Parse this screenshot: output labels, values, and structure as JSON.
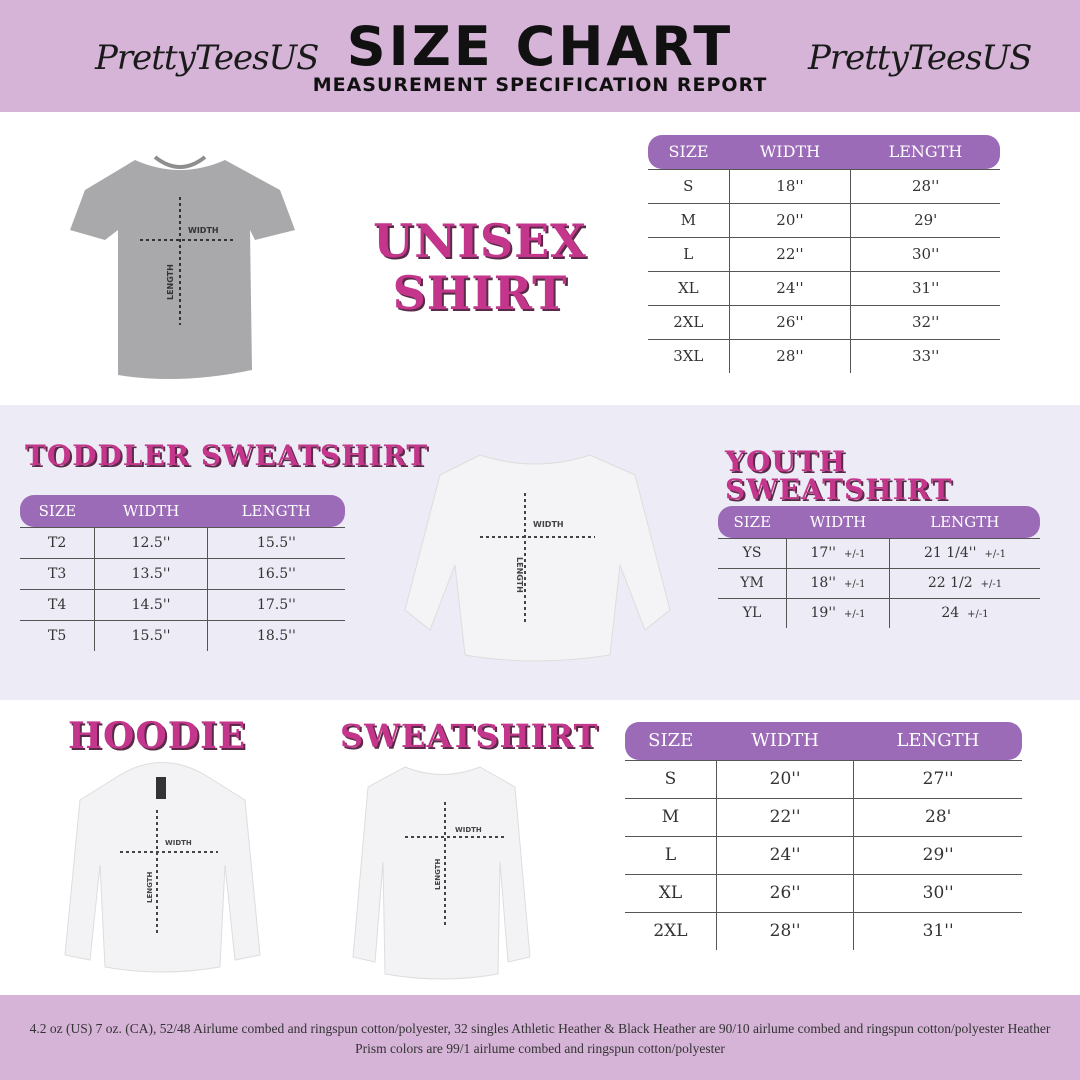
{
  "header": {
    "logo_left": "PrettyTeesUS",
    "logo_right": "PrettyTeesUS",
    "title": "SIZE CHART",
    "subtitle": "MEASUREMENT SPECIFICATION REPORT"
  },
  "measure_labels": {
    "width": "WIDTH",
    "length": "LENGTH"
  },
  "colors": {
    "header_bg": "#d5b4d7",
    "table_header": "#9b6bb7",
    "title_pink": "#c4368c",
    "section_bg": "#edebf6"
  },
  "unisex": {
    "title_line1": "UNISEX",
    "title_line2": "SHIRT",
    "columns": [
      "SIZE",
      "WIDTH",
      "LENGTH"
    ],
    "rows": [
      [
        "S",
        "18''",
        "28''"
      ],
      [
        "M",
        "20''",
        "29'"
      ],
      [
        "L",
        "22''",
        "30''"
      ],
      [
        "XL",
        "24''",
        "31''"
      ],
      [
        "2XL",
        "26''",
        "32''"
      ],
      [
        "3XL",
        "28''",
        "33''"
      ]
    ]
  },
  "toddler": {
    "title": "TODDLER SWEATSHIRT",
    "columns": [
      "SIZE",
      "WIDTH",
      "LENGTH"
    ],
    "rows": [
      [
        "T2",
        "12.5''",
        "15.5''"
      ],
      [
        "T3",
        "13.5''",
        "16.5''"
      ],
      [
        "T4",
        "14.5''",
        "17.5''"
      ],
      [
        "T5",
        "15.5''",
        "18.5''"
      ]
    ]
  },
  "youth": {
    "title": "YOUTH SWEATSHIRT",
    "columns": [
      "SIZE",
      "WIDTH",
      "LENGTH"
    ],
    "tolerance": "+/-1",
    "rows": [
      [
        "YS",
        "17''",
        "21 1/4''"
      ],
      [
        "YM",
        "18''",
        "22 1/2"
      ],
      [
        "YL",
        "19''",
        "24"
      ]
    ]
  },
  "hoodie": {
    "title": "HOODIE"
  },
  "sweatshirt": {
    "title": "SWEATSHIRT",
    "columns": [
      "SIZE",
      "WIDTH",
      "LENGTH"
    ],
    "rows": [
      [
        "S",
        "20''",
        "27''"
      ],
      [
        "M",
        "22''",
        "28'"
      ],
      [
        "L",
        "24''",
        "29''"
      ],
      [
        "XL",
        "26''",
        "30''"
      ],
      [
        "2XL",
        "28''",
        "31''"
      ]
    ]
  },
  "footer": {
    "text": "4.2 oz (US) 7 oz. (CA), 52/48 Airlume combed and ringspun cotton/polyester, 32 singles Athletic Heather & Black Heather are 90/10 airlume combed and ringspun cotton/polyester Heather Prism colors are 99/1 airlume combed and ringspun cotton/polyester"
  }
}
